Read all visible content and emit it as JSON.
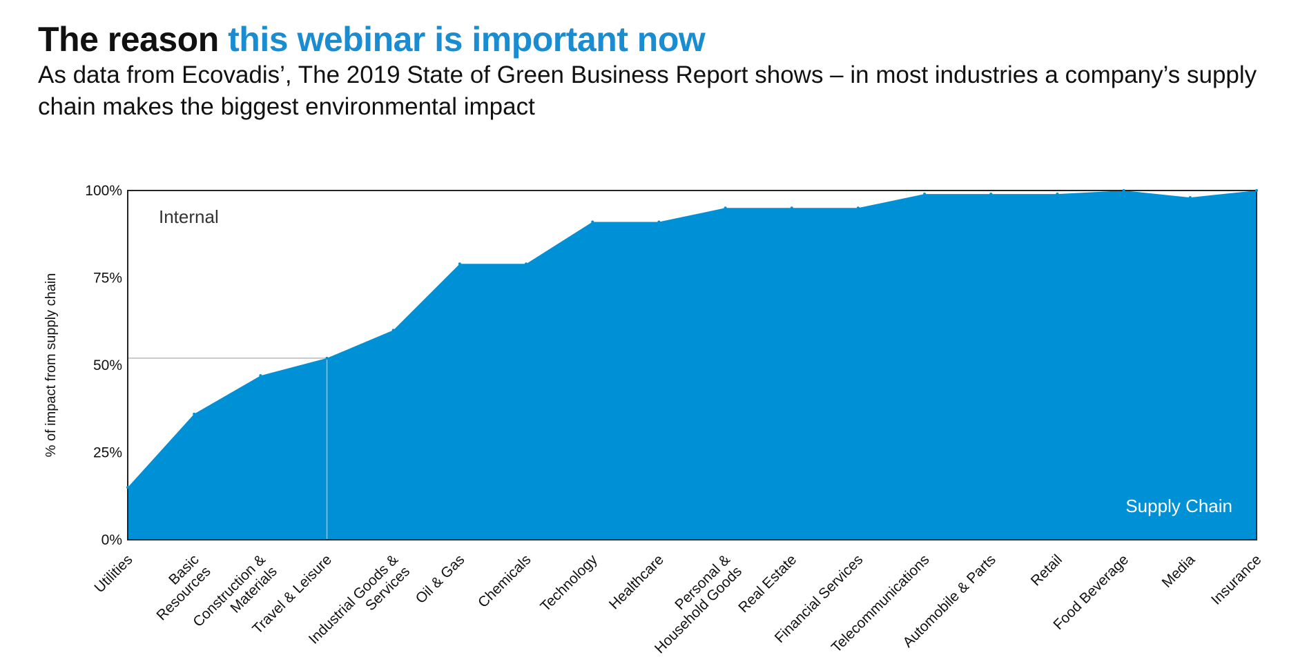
{
  "header": {
    "title_plain": "The reason",
    "title_accent": "this webinar is important now",
    "subtitle": "As data from Ecovadis’, The 2019 State of Green Business Report shows – in most industries a company’s supply chain makes the biggest environmental impact"
  },
  "colors": {
    "accent": "#1a8cd1",
    "area_fill": "#0090d6",
    "border": "#222222",
    "guide_line": "#b9b9b9"
  },
  "chart_data": {
    "type": "area",
    "title": "",
    "xlabel": "",
    "ylabel": "% of impact from supply chain",
    "ylim": [
      0,
      100
    ],
    "yticks": [
      "0%",
      "25%",
      "50%",
      "75%",
      "100%"
    ],
    "ytick_values": [
      0,
      25,
      50,
      75,
      100
    ],
    "categories": [
      "Utilities",
      "Basic Resources",
      "Construction & Materials",
      "Travel & Leisure",
      "Industrial Goods & Services",
      "Oil & Gas",
      "Chemicals",
      "Technology",
      "Healthcare",
      "Personal & Household Goods",
      "Real Estate",
      "Financial Services",
      "Telecommunications",
      "Automobile & Parts",
      "Retail",
      "Food Beverage",
      "Media",
      "Insurance"
    ],
    "category_lines": [
      [
        "Utilities"
      ],
      [
        "Basic",
        "Resources"
      ],
      [
        "Construction &",
        "Materials"
      ],
      [
        "Travel & Leisure"
      ],
      [
        "Industrial Goods &",
        "Services"
      ],
      [
        "Oil & Gas"
      ],
      [
        "Chemicals"
      ],
      [
        "Technology"
      ],
      [
        "Healthcare"
      ],
      [
        "Personal &",
        "Household Goods"
      ],
      [
        "Real Estate"
      ],
      [
        "Financial Services"
      ],
      [
        "Telecommunications"
      ],
      [
        "Automobile & Parts"
      ],
      [
        "Retail"
      ],
      [
        "Food Beverage"
      ],
      [
        "Media"
      ],
      [
        "Insurance"
      ]
    ],
    "series": [
      {
        "name": "Supply Chain",
        "values": [
          15,
          36,
          47,
          52,
          60,
          79,
          79,
          91,
          91,
          95,
          95,
          95,
          99,
          99,
          99,
          100,
          98,
          100
        ]
      }
    ],
    "region_labels": {
      "top": "Internal",
      "bottom": "Supply Chain"
    },
    "reference_value": 52,
    "reference_category": "Travel & Leisure",
    "grid": false,
    "legend": "none"
  }
}
